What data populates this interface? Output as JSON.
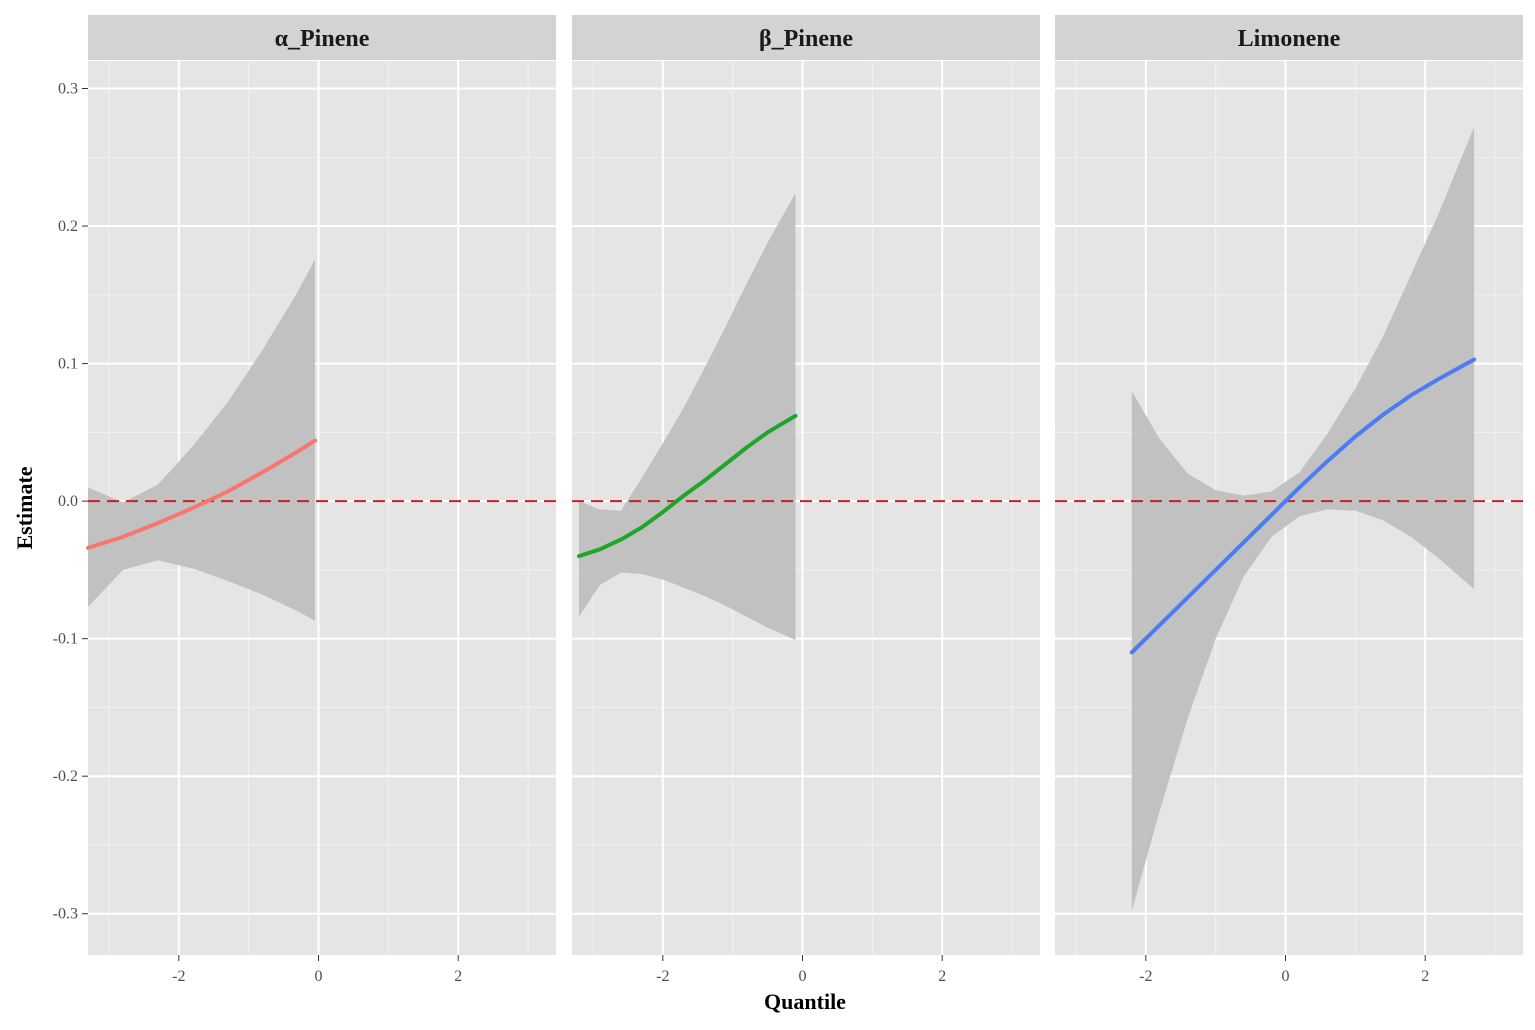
{
  "chart_data": {
    "type": "line",
    "xlabel": "Quantile",
    "ylabel": "Estimate",
    "xlim": [
      -3.3,
      3.4
    ],
    "ylim": [
      -0.33,
      0.32
    ],
    "x_ticks": [
      -2,
      0,
      2
    ],
    "y_ticks": [
      -0.3,
      -0.2,
      -0.1,
      0.0,
      0.1,
      0.2,
      0.3
    ],
    "y_tick_labels": [
      "-0.3",
      "-0.2",
      "-0.1",
      "0.0",
      "0.1",
      "0.2",
      "0.3"
    ],
    "x_tick_labels": [
      "-2",
      "0",
      "2"
    ],
    "reference_line": {
      "y": 0.0,
      "style": "dashed",
      "color": "#cc1f1f"
    },
    "panel_background": "#e5e5e5",
    "strip_background": "#d3d3d3",
    "ribbon_color": "#bdbdbd",
    "grid": true,
    "panels": [
      {
        "title": "α_Pinene",
        "color": "#f8766d",
        "x": [
          -3.3,
          -2.8,
          -2.3,
          -1.8,
          -1.3,
          -0.8,
          -0.3,
          -0.05
        ],
        "y": [
          -0.034,
          -0.026,
          -0.016,
          -0.005,
          0.007,
          0.021,
          0.036,
          0.044
        ],
        "lower": [
          -0.077,
          -0.05,
          -0.043,
          -0.049,
          -0.058,
          -0.068,
          -0.08,
          -0.087
        ],
        "upper": [
          0.01,
          -0.001,
          0.012,
          0.04,
          0.072,
          0.11,
          0.152,
          0.176
        ]
      },
      {
        "title": "β_Pinene",
        "color": "#1fa52a",
        "x": [
          -3.2,
          -2.9,
          -2.6,
          -2.3,
          -2.0,
          -1.7,
          -1.4,
          -1.1,
          -0.8,
          -0.5,
          -0.1
        ],
        "y": [
          -0.04,
          -0.035,
          -0.028,
          -0.019,
          -0.008,
          0.004,
          0.015,
          0.027,
          0.039,
          0.05,
          0.062
        ],
        "lower": [
          -0.084,
          -0.061,
          -0.052,
          -0.053,
          -0.057,
          -0.063,
          -0.069,
          -0.076,
          -0.084,
          -0.092,
          -0.101
        ],
        "upper": [
          0.0,
          -0.006,
          -0.007,
          0.017,
          0.042,
          0.068,
          0.097,
          0.127,
          0.158,
          0.188,
          0.224
        ]
      },
      {
        "title": "Limonene",
        "color": "#4b7cf4",
        "x": [
          -2.2,
          -1.8,
          -1.4,
          -1.0,
          -0.6,
          -0.2,
          0.2,
          0.6,
          1.0,
          1.4,
          1.8,
          2.2,
          2.7
        ],
        "y": [
          -0.11,
          -0.09,
          -0.07,
          -0.05,
          -0.03,
          -0.01,
          0.01,
          0.029,
          0.047,
          0.063,
          0.077,
          0.089,
          0.103
        ],
        "lower": [
          -0.298,
          -0.225,
          -0.158,
          -0.1,
          -0.055,
          -0.026,
          -0.011,
          -0.006,
          -0.007,
          -0.014,
          -0.026,
          -0.042,
          -0.064
        ],
        "upper": [
          0.08,
          0.045,
          0.02,
          0.008,
          0.004,
          0.007,
          0.021,
          0.049,
          0.082,
          0.12,
          0.165,
          0.21,
          0.272
        ]
      }
    ]
  }
}
